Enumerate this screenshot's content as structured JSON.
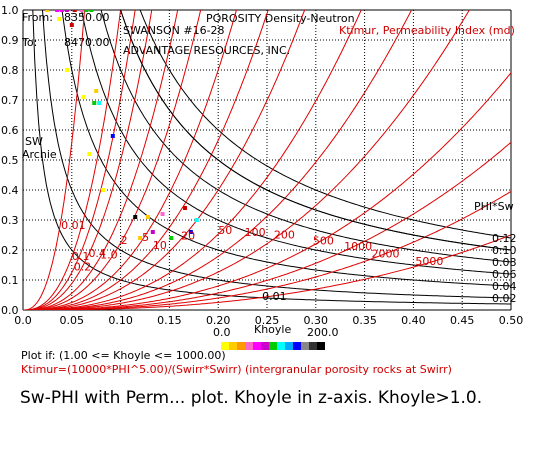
{
  "header": {
    "title": "POROSITY Density-Neutron",
    "from_label": "From:",
    "from_value": "8350.00",
    "to_label": "To:",
    "to_value": "8470.00",
    "well": "SWANSON #16-28",
    "company": "ADVANTAGE RESOURCES, INC.",
    "perm_label": "Ktimur, Permeability Index (md)"
  },
  "footer": {
    "plot_if": "Plot if: (1.00 <= Khoyle <= 1000.00)",
    "formula": "Ktimur=(10000*PHI^5.00)/(Swirr*Swirr) (intergranular porosity rocks at Swirr)",
    "caption": "Sw-PHI with Perm... plot.  Khoyle in z-axis.  Khoyle>1.0."
  },
  "color_scale": {
    "label": "Khoyle",
    "min_label": "0.0",
    "max_label": "200.0",
    "colors": [
      "#ffff00",
      "#ffcc00",
      "#ff9900",
      "#ff66cc",
      "#ff00ff",
      "#cc00cc",
      "#00cc00",
      "#00ffff",
      "#00aaff",
      "#0000ff",
      "#888888",
      "#333333",
      "#000000"
    ]
  },
  "chart_data": {
    "type": "scatter",
    "xlim": [
      0,
      0.5
    ],
    "ylim": [
      0,
      1.0
    ],
    "x_ticks": [
      "0.0",
      "0.05",
      "0.10",
      "0.15",
      "0.20",
      "0.25",
      "0.30",
      "0.35",
      "0.40",
      "0.45",
      "0.50"
    ],
    "y_ticks": [
      "0.0",
      "0.1",
      "0.2",
      "0.3",
      "0.4",
      "0.5",
      "0.6",
      "0.7",
      "0.8",
      "0.9",
      "1.0"
    ],
    "grid": true,
    "sw_archie_label": "SW\nArchie",
    "phi_sw_label": "PHI*Sw",
    "bvw_curves": [
      {
        "value": 0.01,
        "label": "0.01"
      },
      {
        "value": 0.02,
        "label": "0.02"
      },
      {
        "value": 0.04,
        "label": "0.04"
      },
      {
        "value": 0.06,
        "label": "0.06"
      },
      {
        "value": 0.08,
        "label": "0.08"
      },
      {
        "value": 0.1,
        "label": "0.10"
      },
      {
        "value": 0.12,
        "label": "0.12"
      }
    ],
    "perm_curves": [
      {
        "k": 0.01,
        "label": "0.01"
      },
      {
        "k": 0.1,
        "label": "0.1"
      },
      {
        "k": 0.2,
        "label": "0.2"
      },
      {
        "k": 0.4,
        "label": "0.4"
      },
      {
        "k": 1.0,
        "label": "1.0"
      },
      {
        "k": 2,
        "label": "2"
      },
      {
        "k": 5,
        "label": "5"
      },
      {
        "k": 10,
        "label": "10"
      },
      {
        "k": 20,
        "label": "20"
      },
      {
        "k": 50,
        "label": "50"
      },
      {
        "k": 100,
        "label": "100"
      },
      {
        "k": 200,
        "label": "200"
      },
      {
        "k": 500,
        "label": "500"
      },
      {
        "k": 1000,
        "label": "1000"
      },
      {
        "k": 2000,
        "label": "2000"
      },
      {
        "k": 5000,
        "label": "5000"
      }
    ],
    "points": [
      {
        "x": 0.025,
        "y": 1.0,
        "color": "#ffcc00"
      },
      {
        "x": 0.035,
        "y": 1.0,
        "color": "#ff00ff"
      },
      {
        "x": 0.04,
        "y": 1.0,
        "color": "#ff00ff"
      },
      {
        "x": 0.045,
        "y": 1.0,
        "color": "#cc00cc"
      },
      {
        "x": 0.053,
        "y": 1.0,
        "color": "#cc0000"
      },
      {
        "x": 0.06,
        "y": 1.0,
        "color": "#ff66cc"
      },
      {
        "x": 0.065,
        "y": 1.0,
        "color": "#00cc00"
      },
      {
        "x": 0.07,
        "y": 1.0,
        "color": "#00cc00"
      },
      {
        "x": 0.037,
        "y": 0.97,
        "color": "#ffff00"
      },
      {
        "x": 0.05,
        "y": 0.95,
        "color": "#cc0000"
      },
      {
        "x": 0.045,
        "y": 0.8,
        "color": "#ffff00"
      },
      {
        "x": 0.062,
        "y": 0.71,
        "color": "#ffff00"
      },
      {
        "x": 0.075,
        "y": 0.73,
        "color": "#ffcc00"
      },
      {
        "x": 0.073,
        "y": 0.69,
        "color": "#00cc00"
      },
      {
        "x": 0.078,
        "y": 0.69,
        "color": "#00ffff"
      },
      {
        "x": 0.092,
        "y": 0.58,
        "color": "#0000ff"
      },
      {
        "x": 0.068,
        "y": 0.52,
        "color": "#ffff00"
      },
      {
        "x": 0.082,
        "y": 0.4,
        "color": "#ffff00"
      },
      {
        "x": 0.115,
        "y": 0.31,
        "color": "#000000"
      },
      {
        "x": 0.128,
        "y": 0.31,
        "color": "#ffcc00"
      },
      {
        "x": 0.143,
        "y": 0.32,
        "color": "#ff66cc"
      },
      {
        "x": 0.166,
        "y": 0.34,
        "color": "#cc0000"
      },
      {
        "x": 0.178,
        "y": 0.3,
        "color": "#00ffff"
      },
      {
        "x": 0.133,
        "y": 0.26,
        "color": "#cc00cc"
      },
      {
        "x": 0.12,
        "y": 0.24,
        "color": "#ffcc00"
      },
      {
        "x": 0.152,
        "y": 0.24,
        "color": "#00cc00"
      },
      {
        "x": 0.172,
        "y": 0.26,
        "color": "#0000ff"
      }
    ]
  }
}
